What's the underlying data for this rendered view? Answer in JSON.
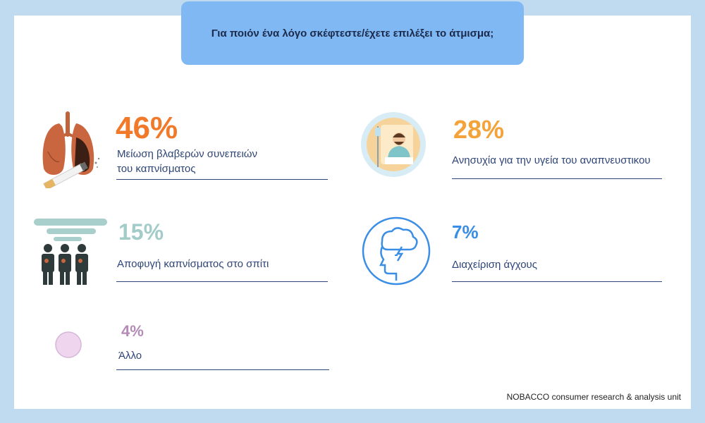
{
  "title": "Για ποιόν ένα λόγο σκέφτεστε/έχετε επιλέξει το άτμισμα;",
  "source": "NOBACCO consumer research & analysis unit",
  "chart_data": {
    "type": "infographic",
    "items": [
      {
        "value": 46,
        "label": "46%",
        "text": "Μείωση βλαβερών συνεπειών του καπνίσματος",
        "text_line1": "Μείωση βλαβερών συνεπειών",
        "text_line2": "του καπνίσματος",
        "color": "#f07a2a",
        "icon": "lungs-cigarette-icon"
      },
      {
        "value": 28,
        "label": "28%",
        "text": "Ανησυχία για την υγεία του αναπνευστικου",
        "color": "#f4a23a",
        "icon": "hospital-patient-icon"
      },
      {
        "value": 15,
        "label": "15%",
        "text": "Αποφυγή καπνίσματος στο σπίτι",
        "color": "#a3ccc9",
        "icon": "smoke-people-icon"
      },
      {
        "value": 7,
        "label": "7%",
        "text": "Διαχείριση άγχους",
        "color": "#3b8ee6",
        "icon": "stressed-head-icon"
      },
      {
        "value": 4,
        "label": "4%",
        "text": "Άλλο",
        "color": "#b48ab6",
        "icon": "other-circle-icon"
      }
    ]
  }
}
